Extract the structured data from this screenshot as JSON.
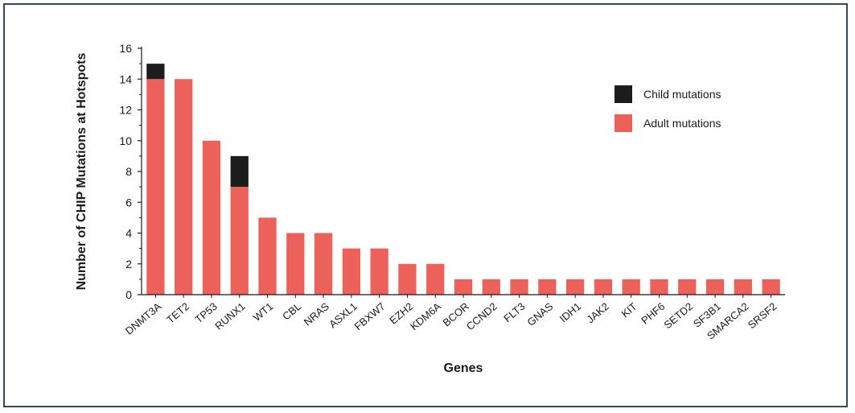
{
  "chart_data": {
    "type": "bar",
    "stacked": true,
    "xlabel": "Genes",
    "ylabel": "Number of CHIP Mutations at Hotspots",
    "ylim": [
      0,
      16
    ],
    "yticks": [
      0,
      2,
      4,
      6,
      8,
      10,
      12,
      14,
      16
    ],
    "legend_position": "top-right",
    "categories": [
      "DNMT3A",
      "TET2",
      "TP53",
      "RUNX1",
      "WT1",
      "CBL",
      "NRAS",
      "ASXL1",
      "FBXW7",
      "EZH2",
      "KDM6A",
      "BCOR",
      "CCND2",
      "FLT3",
      "GNAS",
      "IDH1",
      "JAK2",
      "KIT",
      "PHF6",
      "SETD2",
      "SF3B1",
      "SMARCA2",
      "SRSF2"
    ],
    "series": [
      {
        "name": "Adult mutations",
        "color": "#ec625b",
        "values": [
          14,
          14,
          10,
          7,
          5,
          4,
          4,
          3,
          3,
          2,
          2,
          1,
          1,
          1,
          1,
          1,
          1,
          1,
          1,
          1,
          1,
          1,
          1
        ]
      },
      {
        "name": "Child mutations",
        "color": "#1c1c1c",
        "values": [
          1,
          0,
          0,
          2,
          0,
          0,
          0,
          0,
          0,
          0,
          0,
          0,
          0,
          0,
          0,
          0,
          0,
          0,
          0,
          0,
          0,
          0,
          0
        ]
      }
    ],
    "legend_order": [
      "Child mutations",
      "Adult mutations"
    ]
  }
}
